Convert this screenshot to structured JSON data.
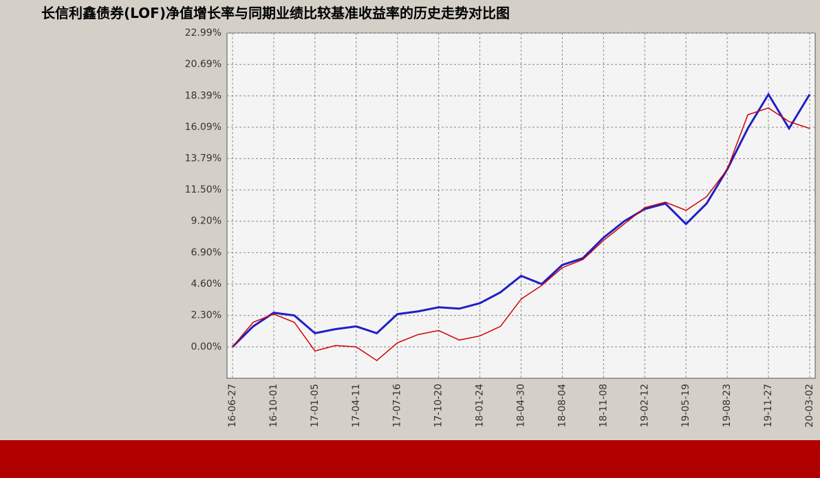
{
  "chart_data": {
    "type": "line",
    "title": "长信利鑫债券(LOF)净值增长率与同期业绩比较基准收益率的历史走势对比图",
    "categories": [
      "16-06-27",
      null,
      "16-10-01",
      null,
      "17-01-05",
      null,
      "17-04-11",
      null,
      "17-07-16",
      null,
      "17-10-20",
      null,
      "18-01-24",
      null,
      "18-04-30",
      null,
      "18-08-04",
      null,
      "18-11-08",
      null,
      "19-02-12",
      null,
      "19-05-19",
      null,
      "19-08-23",
      null,
      "19-11-27",
      null,
      "20-03-02"
    ],
    "series": [
      {
        "color": "#1f1fc8",
        "values": [
          0,
          1.5,
          2.5,
          2.3,
          1.0,
          1.3,
          1.5,
          1.0,
          2.4,
          2.6,
          2.9,
          2.8,
          3.2,
          4.0,
          5.2,
          4.6,
          6.0,
          6.5,
          8.0,
          9.2,
          10.1,
          10.5,
          9.0,
          10.5,
          13.0,
          16.0,
          18.5,
          16.0,
          18.5
        ]
      },
      {
        "color": "#d00000",
        "values": [
          0,
          1.8,
          2.4,
          1.8,
          -0.3,
          0.1,
          0.0,
          -1.0,
          0.3,
          0.9,
          1.2,
          0.5,
          0.8,
          1.5,
          3.5,
          4.5,
          5.8,
          6.4,
          7.8,
          9.0,
          10.2,
          10.6,
          10.0,
          11.0,
          13.0,
          17.0,
          17.5,
          16.5,
          16.0
        ]
      }
    ],
    "ylim": [
      -2.3,
      22.99
    ],
    "yticks": [
      {
        "value": 0,
        "label": "0.00%"
      },
      {
        "value": 2.3,
        "label": "2.30%"
      },
      {
        "value": 4.6,
        "label": "4.60%"
      },
      {
        "value": 6.9,
        "label": "6.90%"
      },
      {
        "value": 9.2,
        "label": "9.20%"
      },
      {
        "value": 11.5,
        "label": "11.50%"
      },
      {
        "value": 13.79,
        "label": "13.79%"
      },
      {
        "value": 16.09,
        "label": "16.09%"
      },
      {
        "value": 18.39,
        "label": "18.39%"
      },
      {
        "value": 20.69,
        "label": "20.69%"
      },
      {
        "value": 22.99,
        "label": "22.99%"
      }
    ],
    "grid": true
  }
}
